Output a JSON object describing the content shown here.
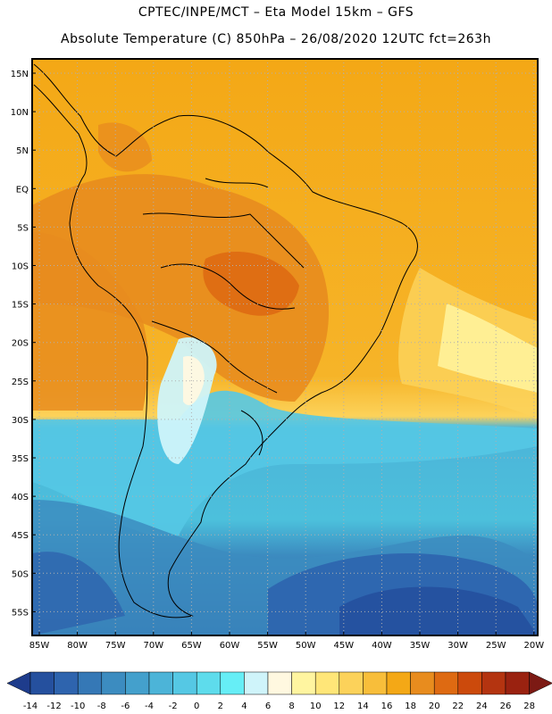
{
  "header": {
    "line1": "CPTEC/INPE/MCT –  Eta Model 15km – GFS",
    "line2": "Absolute Temperature (C) 850hPa – 26/08/2020 12UTC fct=263h"
  },
  "axes": {
    "lat_labels": [
      "15N",
      "10N",
      "5N",
      "EQ",
      "5S",
      "10S",
      "15S",
      "20S",
      "25S",
      "30S",
      "35S",
      "40S",
      "45S",
      "50S",
      "55S"
    ],
    "lon_labels": [
      "85W",
      "80W",
      "75W",
      "70W",
      "65W",
      "60W",
      "55W",
      "50W",
      "45W",
      "40W",
      "35W",
      "30W",
      "25W",
      "20W"
    ]
  },
  "colorbar": {
    "labels": [
      "-14",
      "-12",
      "-10",
      "-8",
      "-6",
      "-4",
      "-2",
      "0",
      "2",
      "4",
      "6",
      "8",
      "10",
      "12",
      "14",
      "16",
      "18",
      "20",
      "22",
      "24",
      "26",
      "28"
    ],
    "colors": [
      "#1e3c8c",
      "#25509e",
      "#2e64ae",
      "#3578b6",
      "#3c8cc0",
      "#44a0cc",
      "#4cb4d8",
      "#55c8e4",
      "#5edcec",
      "#66eef6",
      "#cff4fa",
      "#fff8e0",
      "#fff5a0",
      "#ffe678",
      "#fcd25a",
      "#f8be3a",
      "#f4a816",
      "#e88c1e",
      "#de6a12",
      "#cc4a0c",
      "#b43410",
      "#9a2210",
      "#7c1a14"
    ],
    "low_arrow_color": "#1e3c8c",
    "high_arrow_color": "#7c1a14"
  }
}
